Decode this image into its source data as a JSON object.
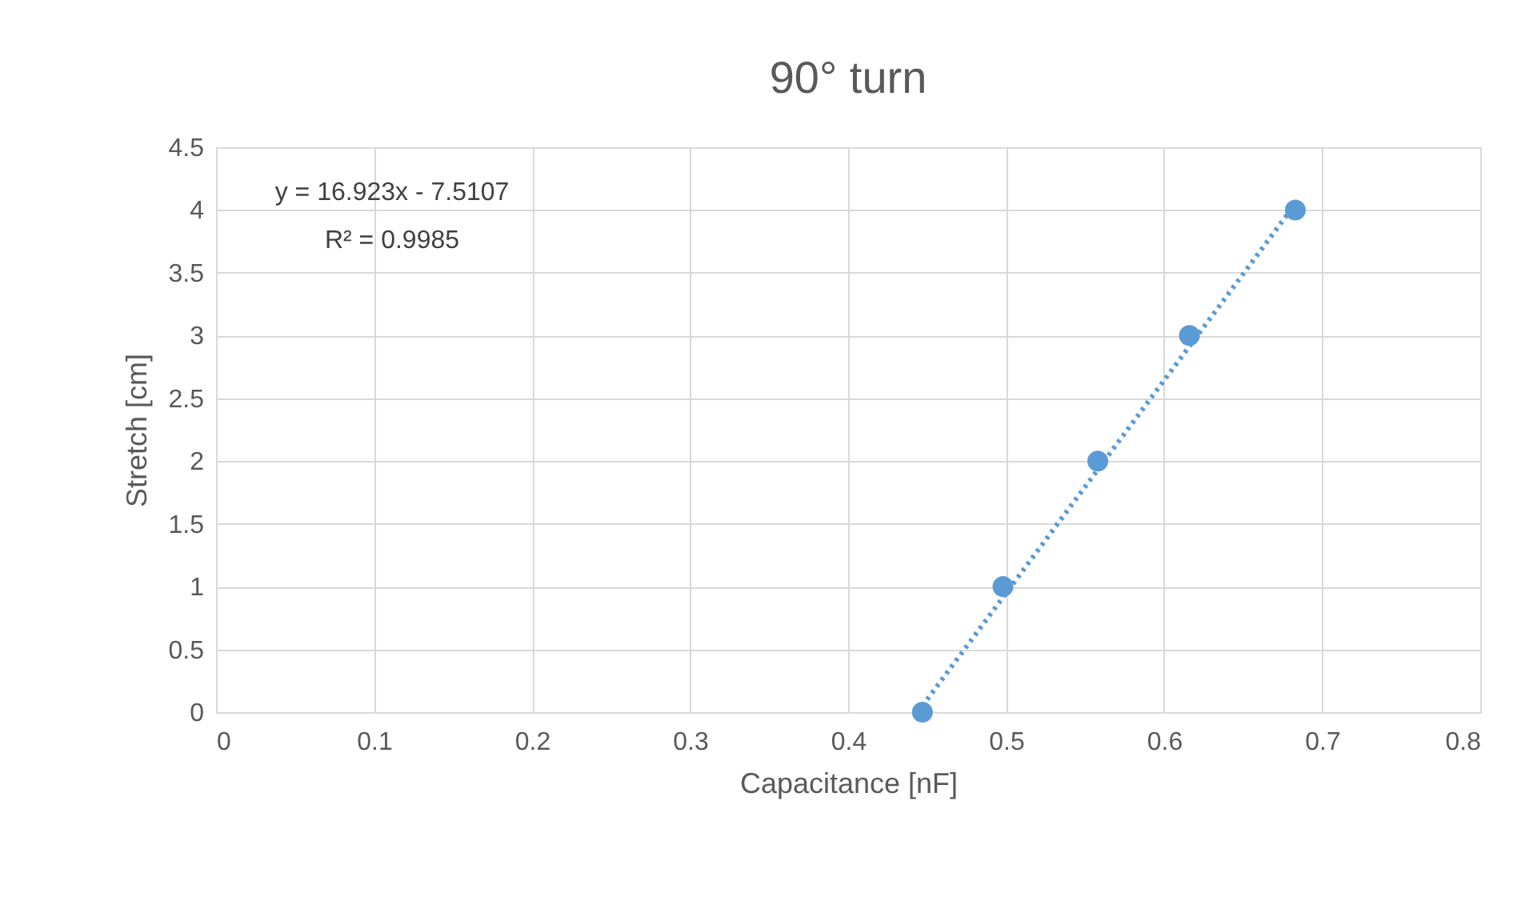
{
  "chart_data": {
    "type": "scatter",
    "title": "90° turn",
    "xlabel": "Capacitance [nF]",
    "ylabel": "Stretch [cm]",
    "x": [
      0.447,
      0.498,
      0.558,
      0.616,
      0.683
    ],
    "series": [
      {
        "color": "#5b9bd5",
        "marker": "circle",
        "values": [
          0,
          1,
          2,
          3,
          4
        ]
      },
      {
        "type": "line",
        "color": "#5b9bd5",
        "marker": "none",
        "line_style": "dotted",
        "x": [
          0.447,
          0.683
        ],
        "values": [
          0.05,
          4.05
        ]
      }
    ],
    "annotations": [
      "y = 16.923x - 7.5107",
      "R² = 0.9985"
    ],
    "xlim": [
      0,
      0.8
    ],
    "xticks": [
      0,
      0.1,
      0.2,
      0.3,
      0.4,
      0.5,
      0.6,
      0.7,
      0.8
    ],
    "ylim": [
      0,
      4.5
    ],
    "yticks": [
      0,
      0.5,
      1,
      1.5,
      2,
      2.5,
      3,
      3.5,
      4,
      4.5
    ],
    "grid": true
  }
}
